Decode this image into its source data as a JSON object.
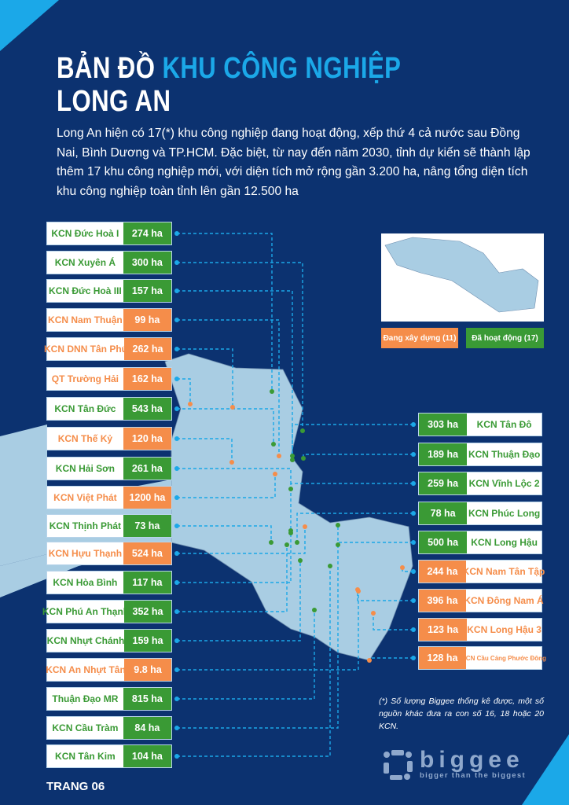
{
  "title": {
    "line1_white": "BẢN ĐỒ ",
    "line1_highlight": "KHU CÔNG NGHIỆP",
    "line2": "LONG AN"
  },
  "intro": "Long An hiện có 17(*) khu công nghiệp đang hoạt động, xếp thứ 4 cả nước sau Đồng Nai, Bình Dương và TP.HCM. Đặc biệt, từ nay đến năm 2030, tỉnh dự kiến sẽ thành lập thêm 17 khu công nghiệp mới, với diện tích mở rộng gần 3.200 ha, nâng tổng diện tích khu công nghiệp toàn tỉnh lên gần 12.500 ha",
  "colors": {
    "background": "#0c3270",
    "accent": "#1ba8e8",
    "active": "#3a9a35",
    "building": "#f58d4a",
    "map": "#a9cde3"
  },
  "legend": {
    "building": "Đang xây dựng (11)",
    "active": "Đã hoạt động (17)"
  },
  "left_parks": [
    {
      "name": "KCN Đức Hoà I",
      "area": "274 ha",
      "status": "active"
    },
    {
      "name": "KCN Xuyên Á",
      "area": "300 ha",
      "status": "active"
    },
    {
      "name": "KCN Đức Hoà III",
      "area": "157 ha",
      "status": "active"
    },
    {
      "name": "KCN Nam Thuận",
      "area": "99 ha",
      "status": "building"
    },
    {
      "name": "KCN DNN Tân Phú",
      "area": "262 ha",
      "status": "building"
    },
    {
      "name": "QT Trường Hải",
      "area": "162 ha",
      "status": "building"
    },
    {
      "name": "KCN Tân Đức",
      "area": "543 ha",
      "status": "active"
    },
    {
      "name": "KCN Thế Kỷ",
      "area": "120 ha",
      "status": "building"
    },
    {
      "name": "KCN Hải Sơn",
      "area": "261 ha",
      "status": "active"
    },
    {
      "name": "KCN Việt Phát",
      "area": "1200 ha",
      "status": "building"
    },
    {
      "name": "KCN Thịnh Phát",
      "area": "73 ha",
      "status": "active"
    },
    {
      "name": "KCN Hựu Thạnh",
      "area": "524 ha",
      "status": "building"
    },
    {
      "name": "KCN Hòa Bình",
      "area": "117 ha",
      "status": "active"
    },
    {
      "name": "KCN Phú An Thạnh",
      "area": "352 ha",
      "status": "active"
    },
    {
      "name": "KCN Nhựt Chánh",
      "area": "159 ha",
      "status": "active"
    },
    {
      "name": "KCN An Nhựt Tân",
      "area": "9.8 ha",
      "status": "building"
    },
    {
      "name": "Thuận Đạo MR",
      "area": "815 ha",
      "status": "active"
    },
    {
      "name": "KCN Cầu Tràm",
      "area": "84 ha",
      "status": "active"
    },
    {
      "name": "KCN Tân Kim",
      "area": "104 ha",
      "status": "active"
    }
  ],
  "right_parks": [
    {
      "name": "KCN Tân Đô",
      "area": "303 ha",
      "status": "active"
    },
    {
      "name": "KCN Thuận Đạo",
      "area": "189 ha",
      "status": "active"
    },
    {
      "name": "KCN Vĩnh Lộc 2",
      "area": "259 ha",
      "status": "active"
    },
    {
      "name": "KCN Phúc Long",
      "area": "78 ha",
      "status": "active"
    },
    {
      "name": "KCN Long Hậu",
      "area": "500 ha",
      "status": "active"
    },
    {
      "name": "KCN Nam Tân Tập",
      "area": "244 ha",
      "status": "building"
    },
    {
      "name": "KCN Đông Nam Á",
      "area": "396 ha",
      "status": "building"
    },
    {
      "name": "KCN Long Hậu 3",
      "area": "123 ha",
      "status": "building"
    },
    {
      "name": "KCN Cầu Cảng Phước Đông",
      "area": "128 ha",
      "status": "building"
    }
  ],
  "note": "(*) Số lượng Biggee thống kê được, một số nguồn khác đưa ra con số 16, 18 hoặc 20 KCN.",
  "logo": {
    "name": "biggee",
    "tagline": "bigger than the biggest"
  },
  "page_label": "TRANG 06"
}
